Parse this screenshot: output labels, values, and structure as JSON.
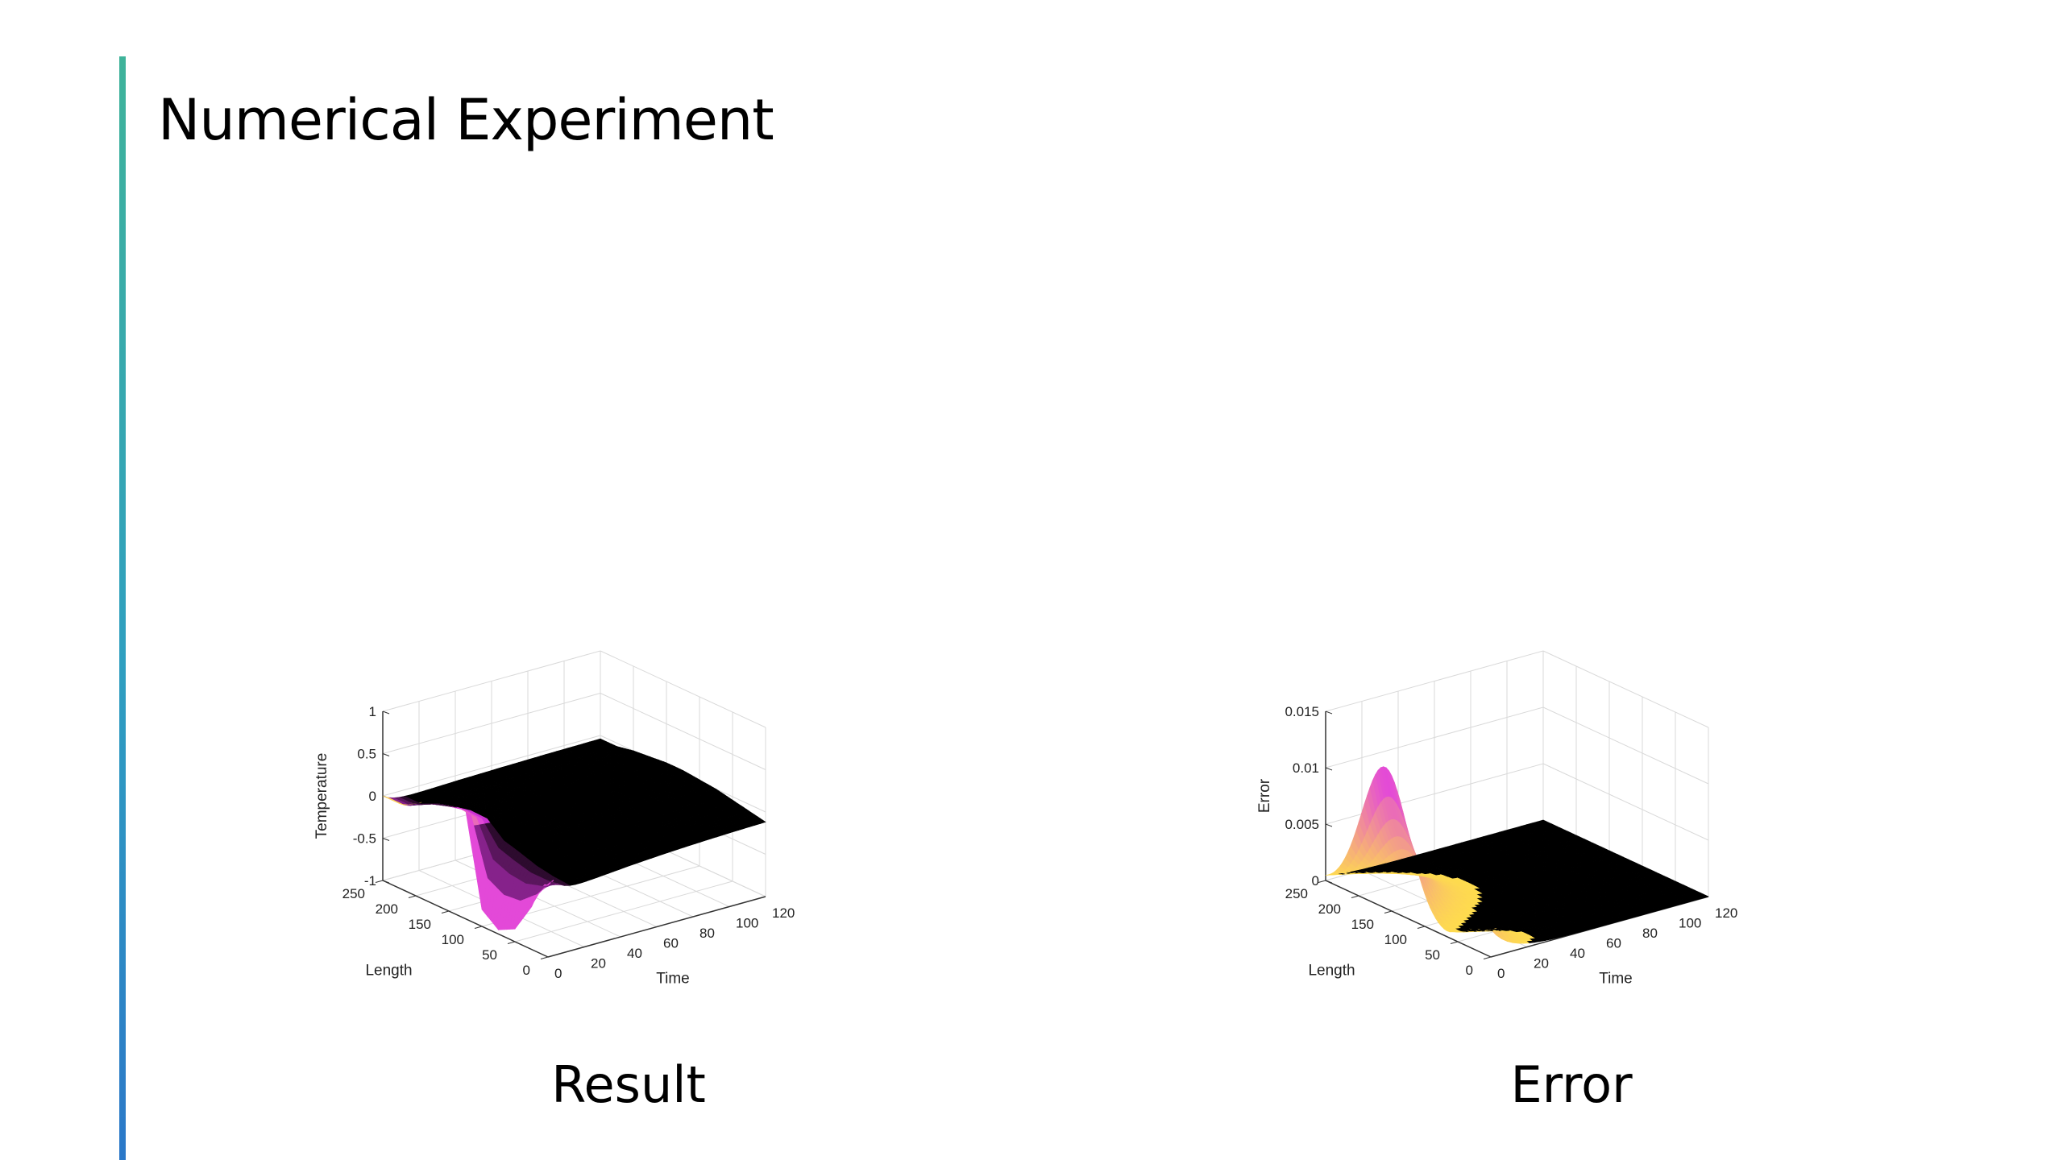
{
  "slide": {
    "title": "Numerical Experiment",
    "accent_colors": [
      "#3fb39a",
      "#2b78c8"
    ]
  },
  "captions": {
    "left": "Result",
    "right": "Error"
  },
  "chart_data": [
    {
      "type": "surface3d",
      "caption": "Result",
      "xlabel": "Length",
      "ylabel": "Time",
      "zlabel": "Temperature",
      "xlim": [
        0,
        250
      ],
      "ylim": [
        0,
        120
      ],
      "zlim": [
        -1,
        1
      ],
      "x_ticks": [
        "0",
        "50",
        "100",
        "150",
        "200",
        "250"
      ],
      "y_ticks": [
        "0",
        "20",
        "40",
        "60",
        "80",
        "100",
        "120"
      ],
      "z_ticks": [
        "-1",
        "-0.5",
        "0",
        "0.5",
        "1"
      ],
      "grid": true,
      "colormap": [
        "#000000",
        "#e038e8",
        "#ffe04a"
      ],
      "surface_description_samples": {
        "x": [
          0,
          25,
          50,
          75,
          100,
          125,
          150,
          175,
          200,
          225
        ],
        "t0_values": [
          0,
          -0.5,
          -0.85,
          -0.95,
          -0.8,
          0.3,
          0.35,
          0.3,
          0.15,
          0.0
        ],
        "steady_values": [
          -0.3,
          -0.2,
          -0.1,
          0.0,
          0.05,
          0.1,
          0.1,
          0.05,
          0.0,
          -0.1
        ]
      }
    },
    {
      "type": "surface3d",
      "caption": "Error",
      "xlabel": "Length",
      "ylabel": "Time",
      "zlabel": "Error",
      "xlim": [
        0,
        250
      ],
      "ylim": [
        0,
        120
      ],
      "zlim": [
        0,
        0.015
      ],
      "x_ticks": [
        "0",
        "50",
        "100",
        "150",
        "200",
        "250"
      ],
      "y_ticks": [
        "0",
        "20",
        "40",
        "60",
        "80",
        "100",
        "120"
      ],
      "z_ticks": [
        "0",
        "0.005",
        "0.01",
        "0.015"
      ],
      "grid": true,
      "colormap": [
        "#000000",
        "#e038e8",
        "#ffe04a"
      ],
      "peaks": [
        {
          "length": 160,
          "time": 0,
          "error": 0.0125
        },
        {
          "length": 20,
          "time": 0,
          "error": 0.0045
        }
      ]
    }
  ]
}
